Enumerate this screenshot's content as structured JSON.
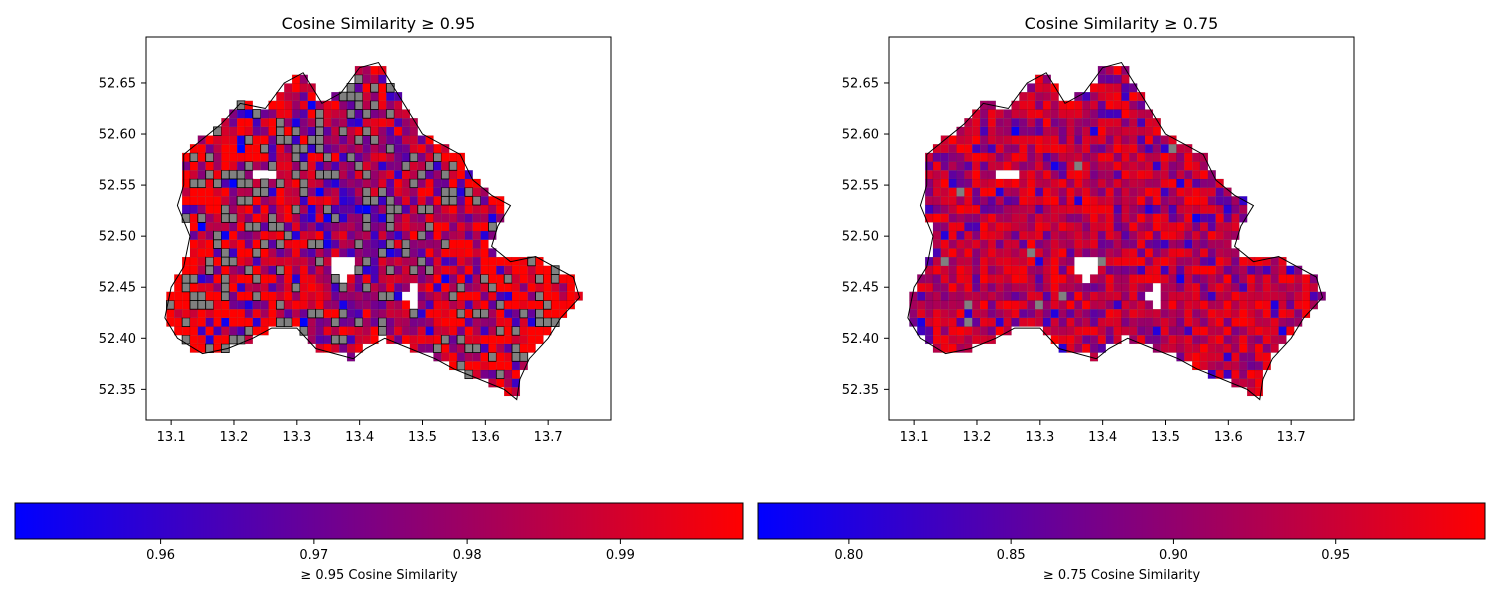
{
  "chart_data": [
    {
      "type": "heatmap",
      "subtype": "choropleth-map",
      "title": "Cosine Similarity ≥ 0.95",
      "xlabel": "",
      "ylabel": "",
      "xlim": [
        13.06,
        13.8
      ],
      "ylim": [
        52.32,
        52.695
      ],
      "x_ticks": [
        13.1,
        13.2,
        13.3,
        13.4,
        13.5,
        13.6,
        13.7
      ],
      "y_ticks": [
        52.35,
        52.4,
        52.45,
        52.5,
        52.55,
        52.6,
        52.65
      ],
      "x_tick_labels": [
        "13.1",
        "13.2",
        "13.3",
        "13.4",
        "13.5",
        "13.6",
        "13.7"
      ],
      "y_tick_labels": [
        "52.35",
        "52.40",
        "52.45",
        "52.50",
        "52.55",
        "52.60",
        "52.65"
      ],
      "colorbar": {
        "label": "≥ 0.95 Cosine Similarity",
        "range": [
          0.9505,
          0.998
        ],
        "ticks": [
          0.96,
          0.97,
          0.98,
          0.99
        ],
        "tick_labels": [
          "0.96",
          "0.97",
          "0.98",
          "0.99"
        ],
        "color_low": "#0000ff",
        "color_high": "#ff0000"
      },
      "missing_color": "#808080",
      "grid": false
    },
    {
      "type": "heatmap",
      "subtype": "choropleth-map",
      "title": "Cosine Similarity ≥ 0.75",
      "xlabel": "",
      "ylabel": "",
      "xlim": [
        13.06,
        13.8
      ],
      "ylim": [
        52.32,
        52.695
      ],
      "x_ticks": [
        13.1,
        13.2,
        13.3,
        13.4,
        13.5,
        13.6,
        13.7
      ],
      "y_ticks": [
        52.35,
        52.4,
        52.45,
        52.5,
        52.55,
        52.6,
        52.65
      ],
      "x_tick_labels": [
        "13.1",
        "13.2",
        "13.3",
        "13.4",
        "13.5",
        "13.6",
        "13.7"
      ],
      "y_tick_labels": [
        "52.35",
        "52.40",
        "52.45",
        "52.50",
        "52.55",
        "52.60",
        "52.65"
      ],
      "colorbar": {
        "label": "≥ 0.75 Cosine Similarity",
        "range": [
          0.772,
          0.996
        ],
        "ticks": [
          0.8,
          0.85,
          0.9,
          0.95
        ],
        "tick_labels": [
          "0.80",
          "0.85",
          "0.90",
          "0.95"
        ],
        "color_low": "#0000ff",
        "color_high": "#ff0000"
      },
      "missing_color": "#808080",
      "grid": false
    }
  ]
}
